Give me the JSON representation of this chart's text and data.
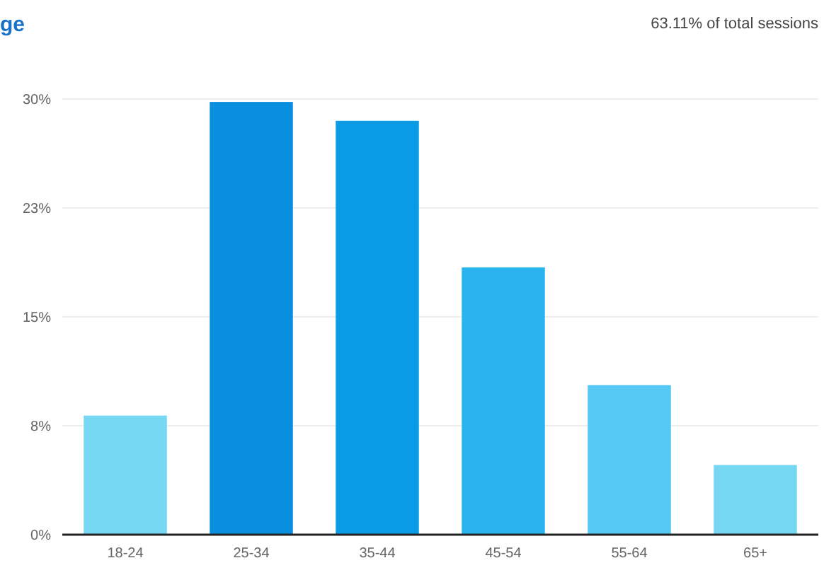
{
  "chart_data": {
    "type": "bar",
    "title": "ge",
    "annotations": [
      "63.11% of total sessions"
    ],
    "categories": [
      "18-24",
      "25-34",
      "35-44",
      "45-54",
      "55-64",
      "65+"
    ],
    "values": [
      8.2,
      29.8,
      28.5,
      18.4,
      10.3,
      4.8
    ],
    "colors": [
      "#76d7f2",
      "#0a8fe0",
      "#0a9be6",
      "#2ab4ef",
      "#55c8f3",
      "#76d7f2"
    ],
    "ylim": [
      0,
      30
    ],
    "yticks": [
      {
        "value": 0,
        "label": "0%"
      },
      {
        "value": 7.5,
        "label": "8%"
      },
      {
        "value": 15,
        "label": "15%"
      },
      {
        "value": 22.5,
        "label": "23%"
      },
      {
        "value": 30,
        "label": "30%"
      }
    ],
    "grid": "y"
  }
}
